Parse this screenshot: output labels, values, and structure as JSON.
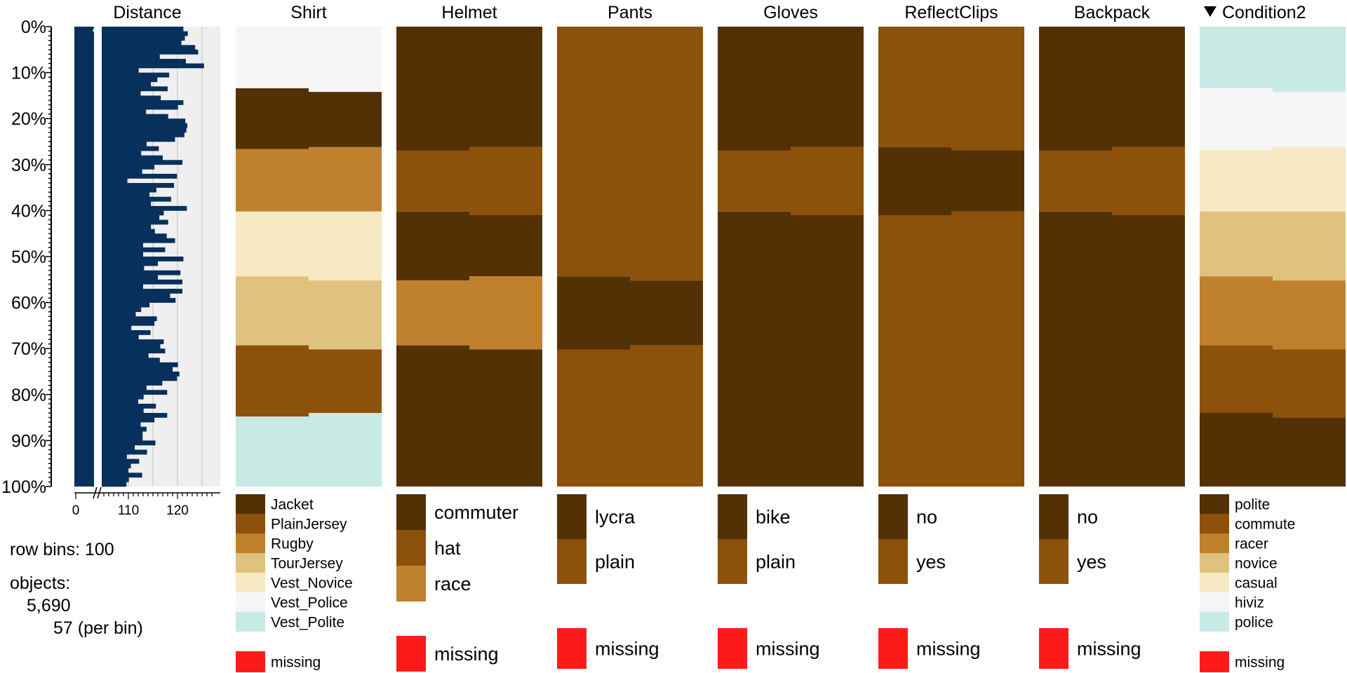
{
  "chart_data": {
    "type": "tableplot",
    "row_axis": {
      "ticks": [
        "0%",
        "10%",
        "20%",
        "30%",
        "40%",
        "50%",
        "60%",
        "70%",
        "80%",
        "90%",
        "100%"
      ]
    },
    "distance": {
      "title": "Distance",
      "x_ticks": [
        0,
        110,
        120
      ],
      "x_tick_labels": [
        "0",
        "110",
        "120"
      ],
      "broken_axis": true,
      "gridlines": [
        110,
        115,
        120,
        125
      ],
      "values": [
        121.2,
        122.1,
        121.5,
        120.8,
        123.6,
        124.2,
        116.4,
        121.7,
        125.4,
        112.1,
        118.3,
        115.9,
        114.6,
        118.0,
        112.5,
        116.6,
        121.2,
        120.1,
        113.6,
        118.1,
        121.6,
        122.0,
        121.8,
        121.4,
        119.5,
        113.7,
        116.2,
        112.6,
        117.0,
        121.0,
        115.3,
        112.8,
        119.9,
        109.8,
        119.3,
        115.7,
        114.3,
        118.7,
        114.6,
        121.9,
        117.2,
        116.3,
        118.1,
        114.6,
        115.4,
        117.8,
        119.5,
        113.0,
        117.5,
        113.0,
        121.2,
        116.0,
        113.2,
        120.6,
        116.0,
        121.0,
        113.0,
        121.0,
        118.5,
        119.6,
        114.3,
        112.6,
        111.5,
        115.8,
        115.3,
        110.6,
        114.5,
        112.1,
        117.2,
        116.5,
        117.5,
        114.1,
        116.4,
        120.1,
        119.0,
        120.4,
        119.9,
        116.9,
        113.7,
        117.9,
        113.1,
        112.0,
        115.6,
        113.1,
        117.9,
        115.3,
        112.5,
        113.7,
        112.9,
        112.9,
        115.5,
        111.3,
        113.8,
        109.7,
        112.2,
        110.5,
        110.0,
        112.8,
        110.1,
        109.6
      ],
      "color": "#08305c"
    },
    "columns": [
      {
        "title": "Shirt",
        "categories": [
          "Jacket",
          "PlainJersey",
          "Rugby",
          "TourJersey",
          "Vest_Novice",
          "Vest_Police",
          "Vest_Polite"
        ],
        "colors": [
          "#543005",
          "#8c510a",
          "#bf812d",
          "#dfc27d",
          "#f6e8c3",
          "#f5f5f5",
          "#c7eae5"
        ],
        "segments": [
          {
            "rows": 13,
            "order": [
              5,
              0,
              2,
              4,
              3,
              1,
              6
            ],
            "cum": [
              0,
              0,
              0,
              0,
              0,
              100,
              100
            ]
          },
          {
            "rows": 9,
            "order": [
              5,
              0,
              2,
              4,
              3,
              1,
              6
            ],
            "cum": [
              0,
              0,
              0,
              0,
              0,
              100,
              100
            ]
          },
          {
            "rows": 32,
            "order": [
              5,
              0,
              2,
              4,
              3,
              1,
              6
            ],
            "cum": [
              0,
              100,
              100,
              100,
              100,
              100,
              100
            ]
          },
          {
            "rows": 46,
            "order": [
              5,
              0,
              2,
              4,
              3,
              1,
              6
            ],
            "cum": [
              0,
              0,
              100,
              100,
              100,
              100,
              100
            ]
          }
        ],
        "boundaries": [
          [
            0.0,
            0.0
          ],
          [
            13.4,
            14.2
          ],
          [
            26.6,
            27.4
          ],
          [
            26.2,
            40.2
          ],
          [
            40.2,
            54.3
          ],
          [
            54.3,
            69.3
          ],
          [
            69.3,
            84.0
          ],
          [
            84.0,
            84.0
          ],
          [
            100.0,
            100.0
          ]
        ]
      },
      {
        "title": "Helmet",
        "categories": [
          "commuter",
          "hat",
          "race"
        ],
        "colors": [
          "#543005",
          "#8c510a",
          "#bf812d"
        ],
        "boundaries": [
          [
            0.0,
            0.0
          ],
          [
            26.2,
            26.9
          ],
          [
            40.2,
            41.0
          ],
          [
            54.3,
            55.2
          ],
          [
            69.3,
            70.2
          ],
          [
            100.0,
            100.0
          ]
        ],
        "stack": [
          0,
          1,
          0,
          2,
          0
        ]
      },
      {
        "title": "Pants",
        "categories": [
          "lycra",
          "plain"
        ],
        "colors": [
          "#543005",
          "#8c510a"
        ],
        "boundaries": [
          [
            0.0,
            0.0
          ],
          [
            54.3,
            55.2
          ],
          [
            69.3,
            70.2
          ],
          [
            100.0,
            100.0
          ]
        ],
        "stack": [
          1,
          0,
          1
        ]
      },
      {
        "title": "Gloves",
        "categories": [
          "bike",
          "plain"
        ],
        "colors": [
          "#543005",
          "#8c510a"
        ],
        "boundaries": [
          [
            0.0,
            0.0
          ],
          [
            26.2,
            26.9
          ],
          [
            40.2,
            41.0
          ],
          [
            100.0,
            100.0
          ]
        ],
        "stack": [
          0,
          1,
          0
        ]
      },
      {
        "title": "ReflectClips",
        "categories": [
          "no",
          "yes"
        ],
        "colors": [
          "#543005",
          "#8c510a"
        ],
        "boundaries": [
          [
            0.0,
            0.0
          ],
          [
            26.2,
            26.9
          ],
          [
            40.2,
            41.0
          ],
          [
            100.0,
            100.0
          ]
        ],
        "stack": [
          1,
          0,
          1
        ]
      },
      {
        "title": "Backpack",
        "categories": [
          "no",
          "yes"
        ],
        "colors": [
          "#543005",
          "#8c510a"
        ],
        "boundaries": [
          [
            0.0,
            0.0
          ],
          [
            26.2,
            26.9
          ],
          [
            40.2,
            41.0
          ],
          [
            100.0,
            100.0
          ]
        ],
        "stack": [
          0,
          1,
          0
        ]
      },
      {
        "title": "Condition2",
        "sorted": true,
        "categories": [
          "polite",
          "commute",
          "racer",
          "novice",
          "casual",
          "hiviz",
          "police"
        ],
        "colors": [
          "#543005",
          "#8c510a",
          "#bf812d",
          "#dfc27d",
          "#f6e8c3",
          "#f5f5f5",
          "#c7eae5"
        ],
        "boundaries": [
          [
            0.0,
            0.0
          ],
          [
            13.4,
            14.2
          ],
          [
            26.6,
            27.4
          ],
          [
            40.2,
            40.2
          ],
          [
            54.3,
            55.2
          ],
          [
            69.3,
            70.2
          ],
          [
            84.0,
            85.0
          ],
          [
            100.0,
            100.0
          ]
        ],
        "stack": [
          6,
          5,
          4,
          3,
          2,
          1,
          0
        ]
      }
    ],
    "missing_label": "missing",
    "missing_color": "#ff1a1a"
  },
  "info": {
    "row_bins_label": "row bins: 100",
    "objects_label": "objects:",
    "objects_count": "5,690",
    "per_bin": "57 (per bin)"
  }
}
